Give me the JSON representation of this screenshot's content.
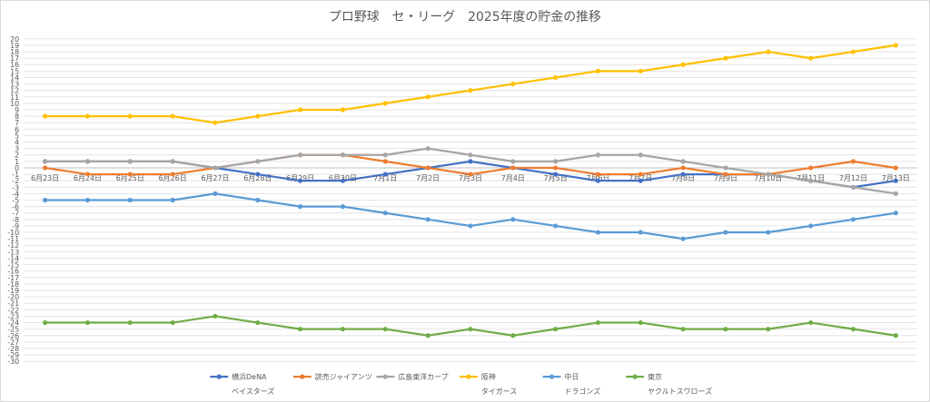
{
  "chart_data": {
    "type": "line",
    "title": "プロ野球　セ・リーグ　2025年度の貯金の推移",
    "xlabel": "",
    "ylabel": "",
    "ylim": [
      -30,
      20
    ],
    "grid": true,
    "legend_position": "bottom",
    "categories": [
      "6月23日",
      "6月24日",
      "6月25日",
      "6月26日",
      "6月27日",
      "6月28日",
      "6月29日",
      "6月30日",
      "7月1日",
      "7月2日",
      "7月3日",
      "7月4日",
      "7月5日",
      "7月6日",
      "7月7日",
      "7月8日",
      "7月9日",
      "7月10日",
      "7月11日",
      "7月12日",
      "7月13日"
    ],
    "series": [
      {
        "name": "横浜DeNA",
        "name2": "ベイスターズ",
        "color": "#4472C4",
        "values": [
          1,
          1,
          1,
          1,
          0,
          -1,
          -2,
          -2,
          -1,
          0,
          1,
          0,
          -1,
          -2,
          -2,
          -1,
          -1,
          -1,
          -2,
          -3,
          -2
        ]
      },
      {
        "name": "読売ジャイアンツ",
        "name2": "",
        "color": "#ED7D31",
        "values": [
          0,
          -1,
          -1,
          -1,
          0,
          1,
          2,
          2,
          1,
          0,
          -1,
          0,
          0,
          -1,
          -1,
          0,
          -1,
          -1,
          0,
          1,
          0
        ]
      },
      {
        "name": "広島東洋カープ",
        "name2": "",
        "color": "#A5A5A5",
        "values": [
          1,
          1,
          1,
          1,
          0,
          1,
          2,
          2,
          2,
          3,
          2,
          1,
          1,
          2,
          2,
          1,
          0,
          -1,
          -2,
          -3,
          -4
        ]
      },
      {
        "name": "阪神",
        "name2": "タイガース",
        "color": "#FFC000",
        "values": [
          8,
          8,
          8,
          8,
          7,
          8,
          9,
          9,
          10,
          11,
          12,
          13,
          14,
          15,
          15,
          16,
          17,
          18,
          17,
          18,
          19
        ]
      },
      {
        "name": "中日",
        "name2": "ドラゴンズ",
        "color": "#5B9BD5",
        "values": [
          -5,
          -5,
          -5,
          -5,
          -4,
          -5,
          -6,
          -6,
          -7,
          -8,
          -9,
          -8,
          -9,
          -10,
          -10,
          -11,
          -10,
          -10,
          -9,
          -8,
          -7
        ]
      },
      {
        "name": "東京",
        "name2": "ヤクルトスワローズ",
        "color": "#70AD47",
        "values": [
          -24,
          -24,
          -24,
          -24,
          -23,
          -24,
          -25,
          -25,
          -25,
          -26,
          -25,
          -26,
          -25,
          -24,
          -24,
          -25,
          -25,
          -25,
          -24,
          -25,
          -26
        ]
      }
    ]
  }
}
